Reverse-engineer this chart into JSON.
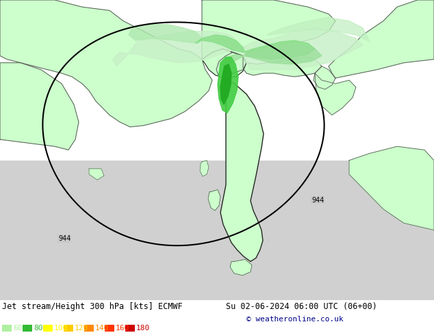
{
  "title": "Jet stream/Height 300 hPa [kts] ECMWF",
  "date_str": "Su 02-06-2024 06:00 UTC (06+00)",
  "copyright": "© weatheronline.co.uk",
  "legend_labels": [
    "60",
    "80",
    "100",
    "120",
    "140",
    "160",
    "180"
  ],
  "legend_colors": [
    "#aff0a0",
    "#33bb33",
    "#ffff00",
    "#ffcc00",
    "#ff8800",
    "#ff3300",
    "#cc0000"
  ],
  "bg_color": "#ccffcc",
  "land_color": "#ccffcc",
  "sea_color": "#c8c8c8",
  "italy_land": "#ccffcc",
  "border_color": "#555555",
  "bold_border_color": "#222222",
  "figsize": [
    6.34,
    4.9
  ],
  "dpi": 100,
  "title_color": "#000000",
  "date_color": "#000000",
  "copyright_color": "#000088",
  "jet60_color": "#bbf0bb",
  "jet80_color": "#66dd66",
  "jet100_color": "#22bb22",
  "jet120_color": "#009900",
  "contour_line_color": "#000000"
}
